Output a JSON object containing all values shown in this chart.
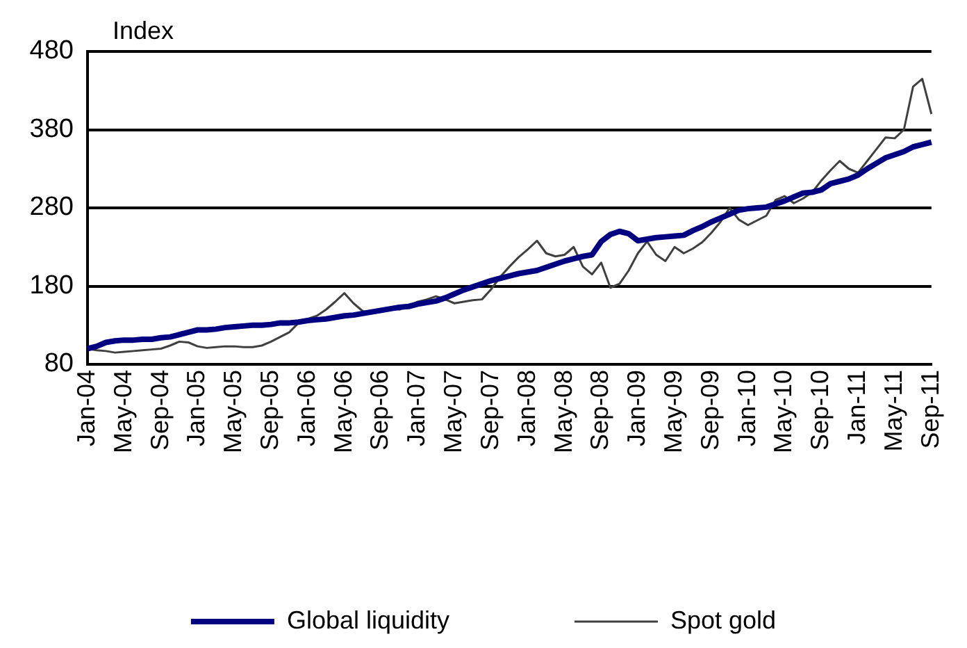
{
  "chart_data": {
    "type": "line",
    "ylabel": "Index",
    "categories": [
      "Jan-04",
      null,
      null,
      null,
      "May-04",
      null,
      null,
      null,
      "Sep-04",
      null,
      null,
      null,
      "Jan-05",
      null,
      null,
      null,
      "May-05",
      null,
      null,
      null,
      "Sep-05",
      null,
      null,
      null,
      "Jan-06",
      null,
      null,
      null,
      "May-06",
      null,
      null,
      null,
      "Sep-06",
      null,
      null,
      null,
      "Jan-07",
      null,
      null,
      null,
      "May-07",
      null,
      null,
      null,
      "Sep-07",
      null,
      null,
      null,
      "Jan-08",
      null,
      null,
      null,
      "May-08",
      null,
      null,
      null,
      "Sep-08",
      null,
      null,
      null,
      "Jan-09",
      null,
      null,
      null,
      "May-09",
      null,
      null,
      null,
      "Sep-09",
      null,
      null,
      null,
      "Jan-10",
      null,
      null,
      null,
      "May-10",
      null,
      null,
      null,
      "Sep-10",
      null,
      null,
      null,
      "Jan-11",
      null,
      null,
      null,
      "May-11",
      null,
      null,
      null,
      "Sep-11"
    ],
    "series": [
      {
        "name": "Global liquidity",
        "color": "#000080",
        "values": [
          100,
          103,
          108,
          110,
          111,
          111,
          112,
          112,
          114,
          115,
          118,
          121,
          124,
          124,
          125,
          127,
          128,
          129,
          130,
          130,
          131,
          133,
          133,
          134,
          136,
          137,
          138,
          140,
          142,
          143,
          145,
          147,
          149,
          151,
          153,
          154,
          157,
          159,
          161,
          165,
          170,
          175,
          179,
          183,
          187,
          190,
          193,
          196,
          198,
          200,
          204,
          208,
          212,
          215,
          218,
          220,
          237,
          246,
          250,
          247,
          238,
          240,
          242,
          243,
          244,
          245,
          251,
          256,
          262,
          267,
          272,
          277,
          279,
          280,
          281,
          285,
          289,
          294,
          299,
          300,
          303,
          311,
          314,
          317,
          322,
          330,
          337,
          344,
          348,
          352,
          358,
          361,
          364
        ]
      },
      {
        "name": "Spot gold",
        "color": "#404040",
        "values": [
          100,
          98,
          97,
          95,
          96,
          97,
          98,
          99,
          100,
          104,
          109,
          108,
          103,
          101,
          102,
          103,
          103,
          102,
          102,
          104,
          109,
          115,
          121,
          133,
          138,
          142,
          150,
          160,
          171,
          158,
          148,
          145,
          147,
          151,
          150,
          155,
          160,
          163,
          167,
          163,
          158,
          160,
          162,
          163,
          176,
          192,
          205,
          217,
          227,
          238,
          222,
          218,
          220,
          230,
          205,
          195,
          210,
          178,
          183,
          200,
          222,
          237,
          220,
          212,
          230,
          222,
          228,
          236,
          248,
          262,
          280,
          265,
          258,
          264,
          270,
          290,
          295,
          286,
          292,
          300,
          315,
          328,
          340,
          330,
          325,
          340,
          355,
          370,
          369,
          380,
          435,
          445,
          400
        ]
      }
    ],
    "ylim": [
      80,
      480
    ],
    "yticks": [
      80,
      180,
      280,
      380,
      480
    ],
    "grid": "y",
    "legend": "bottom"
  }
}
